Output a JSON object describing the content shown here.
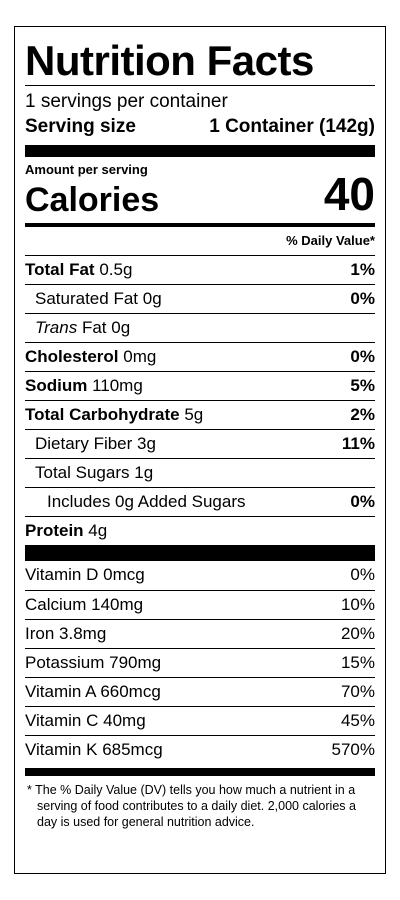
{
  "title": "Nutrition Facts",
  "servings_per_container": "1 servings per container",
  "serving_size": {
    "label": "Serving size",
    "value": "1 Container (142g)"
  },
  "amount_per_serving": "Amount per serving",
  "calories": {
    "label": "Calories",
    "value": "40"
  },
  "daily_value_header": "% Daily Value*",
  "nutrients": [
    {
      "name": "Total Fat",
      "amount": "0.5g",
      "dv": "1%"
    },
    {
      "name": "Saturated Fat",
      "amount": "0g",
      "dv": "0%"
    },
    {
      "name_italic": "Trans",
      "name": "Fat",
      "amount": "0g",
      "dv": ""
    },
    {
      "name": "Cholesterol",
      "amount": "0mg",
      "dv": "0%"
    },
    {
      "name": "Sodium",
      "amount": "110mg",
      "dv": "5%"
    },
    {
      "name": "Total Carbohydrate",
      "amount": "5g",
      "dv": "2%"
    },
    {
      "name": "Dietary Fiber",
      "amount": "3g",
      "dv": "11%"
    },
    {
      "name": "Total Sugars",
      "amount": "1g",
      "dv": ""
    },
    {
      "name": "Includes 0g Added Sugars",
      "amount": "",
      "dv": "0%"
    },
    {
      "name": "Protein",
      "amount": "4g",
      "dv": ""
    }
  ],
  "vitamins": [
    {
      "name": "Vitamin D",
      "amount": "0mcg",
      "dv": "0%"
    },
    {
      "name": "Calcium",
      "amount": "140mg",
      "dv": "10%"
    },
    {
      "name": "Iron",
      "amount": "3.8mg",
      "dv": "20%"
    },
    {
      "name": "Potassium",
      "amount": "790mg",
      "dv": "15%"
    },
    {
      "name": "Vitamin A",
      "amount": "660mcg",
      "dv": "70%"
    },
    {
      "name": "Vitamin C",
      "amount": "40mg",
      "dv": "45%"
    },
    {
      "name": "Vitamin K",
      "amount": "685mcg",
      "dv": "570%"
    }
  ],
  "footnote": "* The % Daily Value (DV) tells you how much a nutrient in a serving of food contributes to a daily diet. 2,000 calories a day is used for general nutrition advice."
}
